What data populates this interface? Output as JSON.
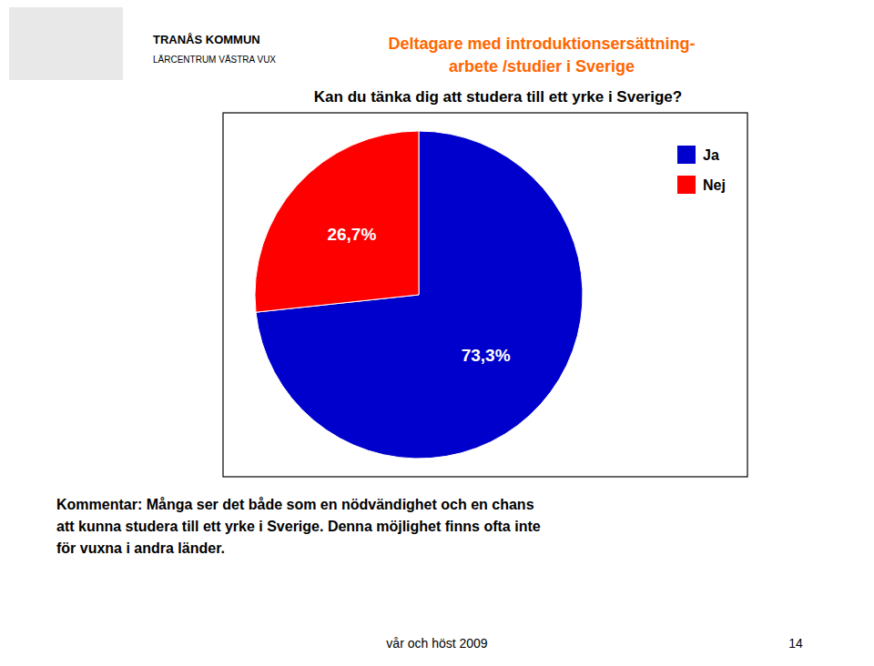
{
  "chart_data": {
    "type": "pie",
    "title": [
      "Deltagare med introduktionsersättning-",
      "arbete /studier i Sverige"
    ],
    "title_color": "#FF6600",
    "subtitle": "Kan du tänka dig att studera till ett yrke i Sverige?",
    "categories": [
      "Ja",
      "Nej"
    ],
    "values": [
      73.3,
      26.7
    ],
    "value_labels": [
      "73,3%",
      "26,7%"
    ],
    "colors": [
      "#0000CC",
      "#FF0000"
    ],
    "data_labels": true,
    "legend": "upper right",
    "annotations": [
      "TRANÅS KOMMUN",
      "LÄRCENTRUM VÄSTRA VUX",
      "Kommentar:  Många ser det både som en nödvändighet och en chans\natt kunna studera till ett yrke i Sverige. Denna möjlighet finns ofta inte\nför vuxna i andra länder.",
      "vår och höst 2009",
      "14"
    ]
  }
}
